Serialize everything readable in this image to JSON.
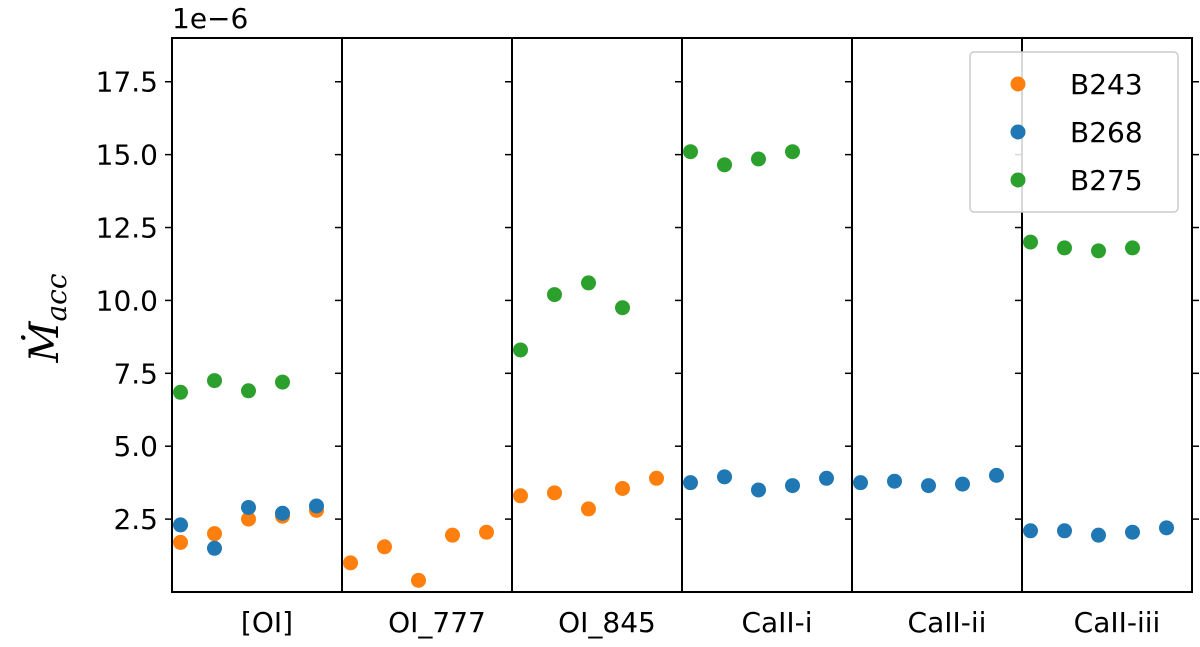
{
  "chart_data": {
    "type": "scatter",
    "ylabel_main": "Ṁ",
    "ylabel_sub": "acc",
    "offset_text": "1e−6",
    "ylim": [
      0,
      19
    ],
    "yticks": [
      "2.5",
      "5.0",
      "7.5",
      "10.0",
      "12.5",
      "15.0",
      "17.5"
    ],
    "ytick_values": [
      2.5,
      5.0,
      7.5,
      10.0,
      12.5,
      15.0,
      17.5
    ],
    "panels": [
      "[OI]",
      "OI_777",
      "OI_845",
      "CaII-i",
      "CaII-ii",
      "CaII-iii"
    ],
    "points_per_panel": 5,
    "colors": {
      "B243": "#ff7f0e",
      "B268": "#1f77b4",
      "B275": "#2ca02c"
    },
    "legend": [
      "B243",
      "B268",
      "B275"
    ],
    "series": [
      {
        "name": "B243",
        "panel_values": [
          [
            1.7,
            2.0,
            2.5,
            2.6,
            2.8
          ],
          [
            1.0,
            1.55,
            0.4,
            1.95,
            2.05
          ],
          [
            3.3,
            3.4,
            2.85,
            3.55,
            3.9
          ],
          [],
          [],
          []
        ]
      },
      {
        "name": "B268",
        "panel_values": [
          [
            2.3,
            1.5,
            2.9,
            2.7,
            2.95
          ],
          [],
          [],
          [
            3.75,
            3.95,
            3.5,
            3.65,
            3.9
          ],
          [
            3.75,
            3.8,
            3.65,
            3.7,
            4.0
          ],
          [
            2.1,
            2.1,
            1.95,
            2.05,
            2.2
          ]
        ]
      },
      {
        "name": "B275",
        "panel_values": [
          [
            6.85,
            7.25,
            6.9,
            7.2,
            null
          ],
          [],
          [
            8.3,
            10.2,
            10.6,
            9.75,
            null
          ],
          [
            15.1,
            14.65,
            14.85,
            15.1,
            null
          ],
          [],
          [
            12.0,
            11.8,
            11.7,
            11.8,
            null
          ]
        ]
      }
    ],
    "grid": false,
    "legend_position": "top-right"
  }
}
